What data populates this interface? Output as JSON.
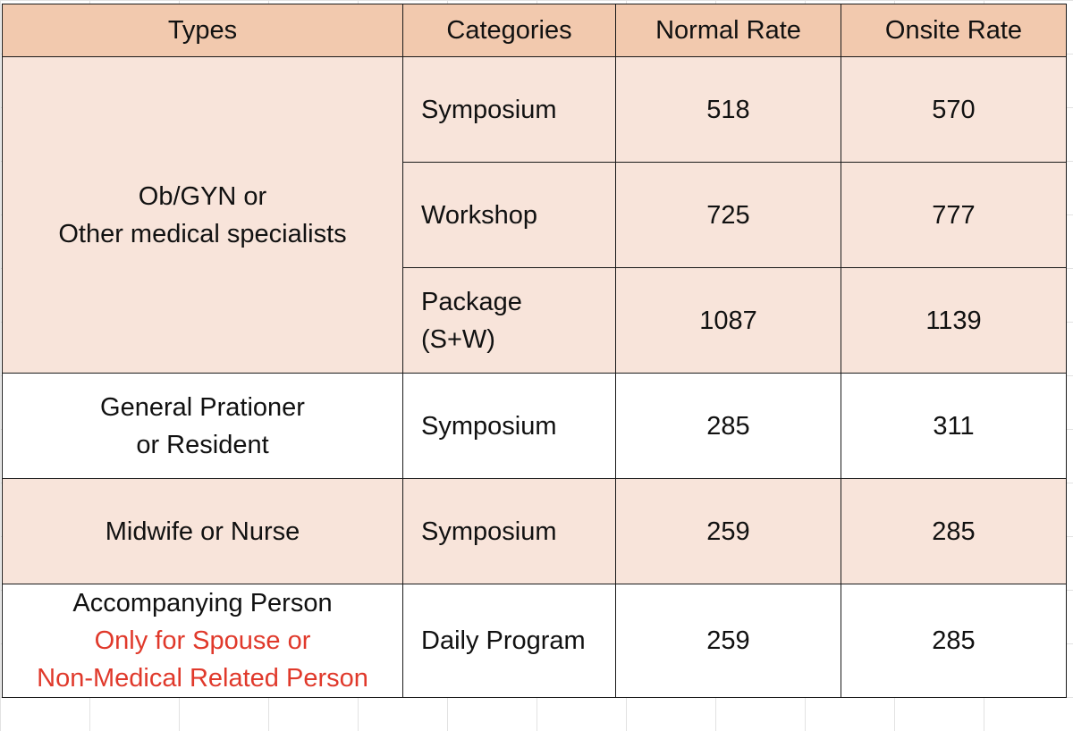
{
  "headers": {
    "types": "Types",
    "categories": "Categories",
    "normal": "Normal Rate",
    "onsite": "Onsite Rate"
  },
  "groups": [
    {
      "type_lines": [
        "Ob/GYN or",
        "Other medical specialists"
      ],
      "note_lines": [],
      "background": "#f8e4da",
      "rows": [
        {
          "category_lines": [
            "Symposium"
          ],
          "normal": "518",
          "onsite": "570"
        },
        {
          "category_lines": [
            "Workshop"
          ],
          "normal": "725",
          "onsite": "777"
        },
        {
          "category_lines": [
            "Package",
            "(S+W)"
          ],
          "normal": "1087",
          "onsite": "1139"
        }
      ]
    },
    {
      "type_lines": [
        "General Prationer",
        "or Resident"
      ],
      "note_lines": [],
      "background": "#ffffff",
      "rows": [
        {
          "category_lines": [
            "Symposium"
          ],
          "normal": "285",
          "onsite": "311"
        }
      ]
    },
    {
      "type_lines": [
        "Midwife or Nurse"
      ],
      "note_lines": [],
      "background": "#f8e4da",
      "rows": [
        {
          "category_lines": [
            "Symposium"
          ],
          "normal": "259",
          "onsite": "285"
        }
      ]
    },
    {
      "type_lines": [
        "Accompanying Person"
      ],
      "note_lines": [
        "Only for Spouse or",
        "Non-Medical Related Person"
      ],
      "background": "#ffffff",
      "rows": [
        {
          "category_lines": [
            "Daily Program"
          ],
          "normal": "259",
          "onsite": "285"
        }
      ]
    }
  ],
  "colors": {
    "header_bg": "#f2c9ae",
    "peach_bg": "#f8e4da",
    "note_text": "#e0392b",
    "border": "#1a1a1a"
  }
}
